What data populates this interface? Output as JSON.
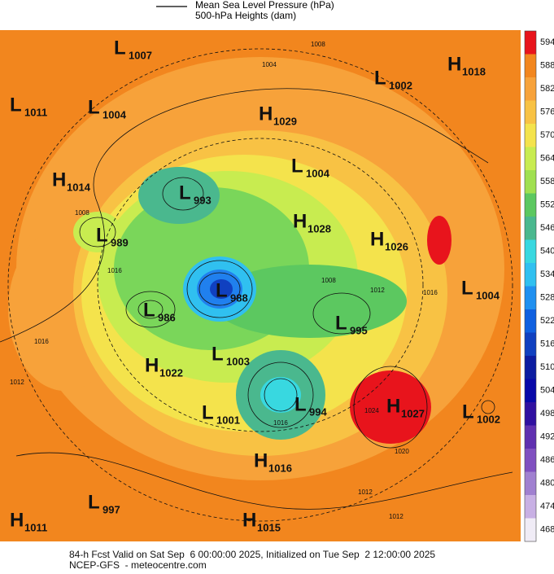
{
  "legend": {
    "items": [
      {
        "label": "Mean Sea Level Pressure (hPa)"
      },
      {
        "label": "500-hPa Heights (dam)"
      }
    ]
  },
  "pressure_centers": [
    {
      "type": "L",
      "value": 1007
    },
    {
      "type": "L",
      "value": 1002
    },
    {
      "type": "H",
      "value": 1018
    },
    {
      "type": "L",
      "value": 1011
    },
    {
      "type": "L",
      "value": 1004
    },
    {
      "type": "H",
      "value": 1029
    },
    {
      "type": "L",
      "value": 1004
    },
    {
      "type": "H",
      "value": 1014
    },
    {
      "type": "L",
      "value": 993
    },
    {
      "type": "L",
      "value": 989
    },
    {
      "type": "H",
      "value": 1028
    },
    {
      "type": "H",
      "value": 1026
    },
    {
      "type": "L",
      "value": 988
    },
    {
      "type": "L",
      "value": 1004
    },
    {
      "type": "L",
      "value": 986
    },
    {
      "type": "L",
      "value": 995
    },
    {
      "type": "L",
      "value": 1003
    },
    {
      "type": "H",
      "value": 1022
    },
    {
      "type": "H",
      "value": 1027
    },
    {
      "type": "L",
      "value": 1002
    },
    {
      "type": "L",
      "value": 994
    },
    {
      "type": "L",
      "value": 1001
    },
    {
      "type": "H",
      "value": 1016
    },
    {
      "type": "L",
      "value": 997
    },
    {
      "type": "H",
      "value": 1011
    },
    {
      "type": "H",
      "value": 1015
    }
  ],
  "isobar_labels": [
    1008,
    1004,
    1008,
    1016,
    1016,
    1012,
    1008,
    1012,
    1016,
    1024,
    1020,
    1016,
    1012,
    1012
  ],
  "colorbar": {
    "ticks": [
      594,
      588,
      582,
      576,
      570,
      564,
      558,
      552,
      546,
      540,
      534,
      528,
      522,
      516,
      510,
      504,
      498,
      492,
      486,
      480,
      474,
      468
    ],
    "colors": [
      "#e8141c",
      "#f2861e",
      "#f7a23a",
      "#f8c244",
      "#f4e34c",
      "#c8ec50",
      "#a0e050",
      "#5cc860",
      "#4ab88e",
      "#38d8e0",
      "#30c0f0",
      "#2090f0",
      "#1060e0",
      "#1040c0",
      "#0c1ca0",
      "#0808a8",
      "#3010a0",
      "#6030b0",
      "#8050c0",
      "#a080d0",
      "#c8b0e4",
      "#f0ecf6"
    ]
  },
  "footer": {
    "line1": "84-h Fcst Valid on Sat Sep  6 00:00:00 2025, Initialized on Tue Sep  2 12:00:00 2025",
    "line2": "NCEP-GFS  - meteocentre.com"
  }
}
